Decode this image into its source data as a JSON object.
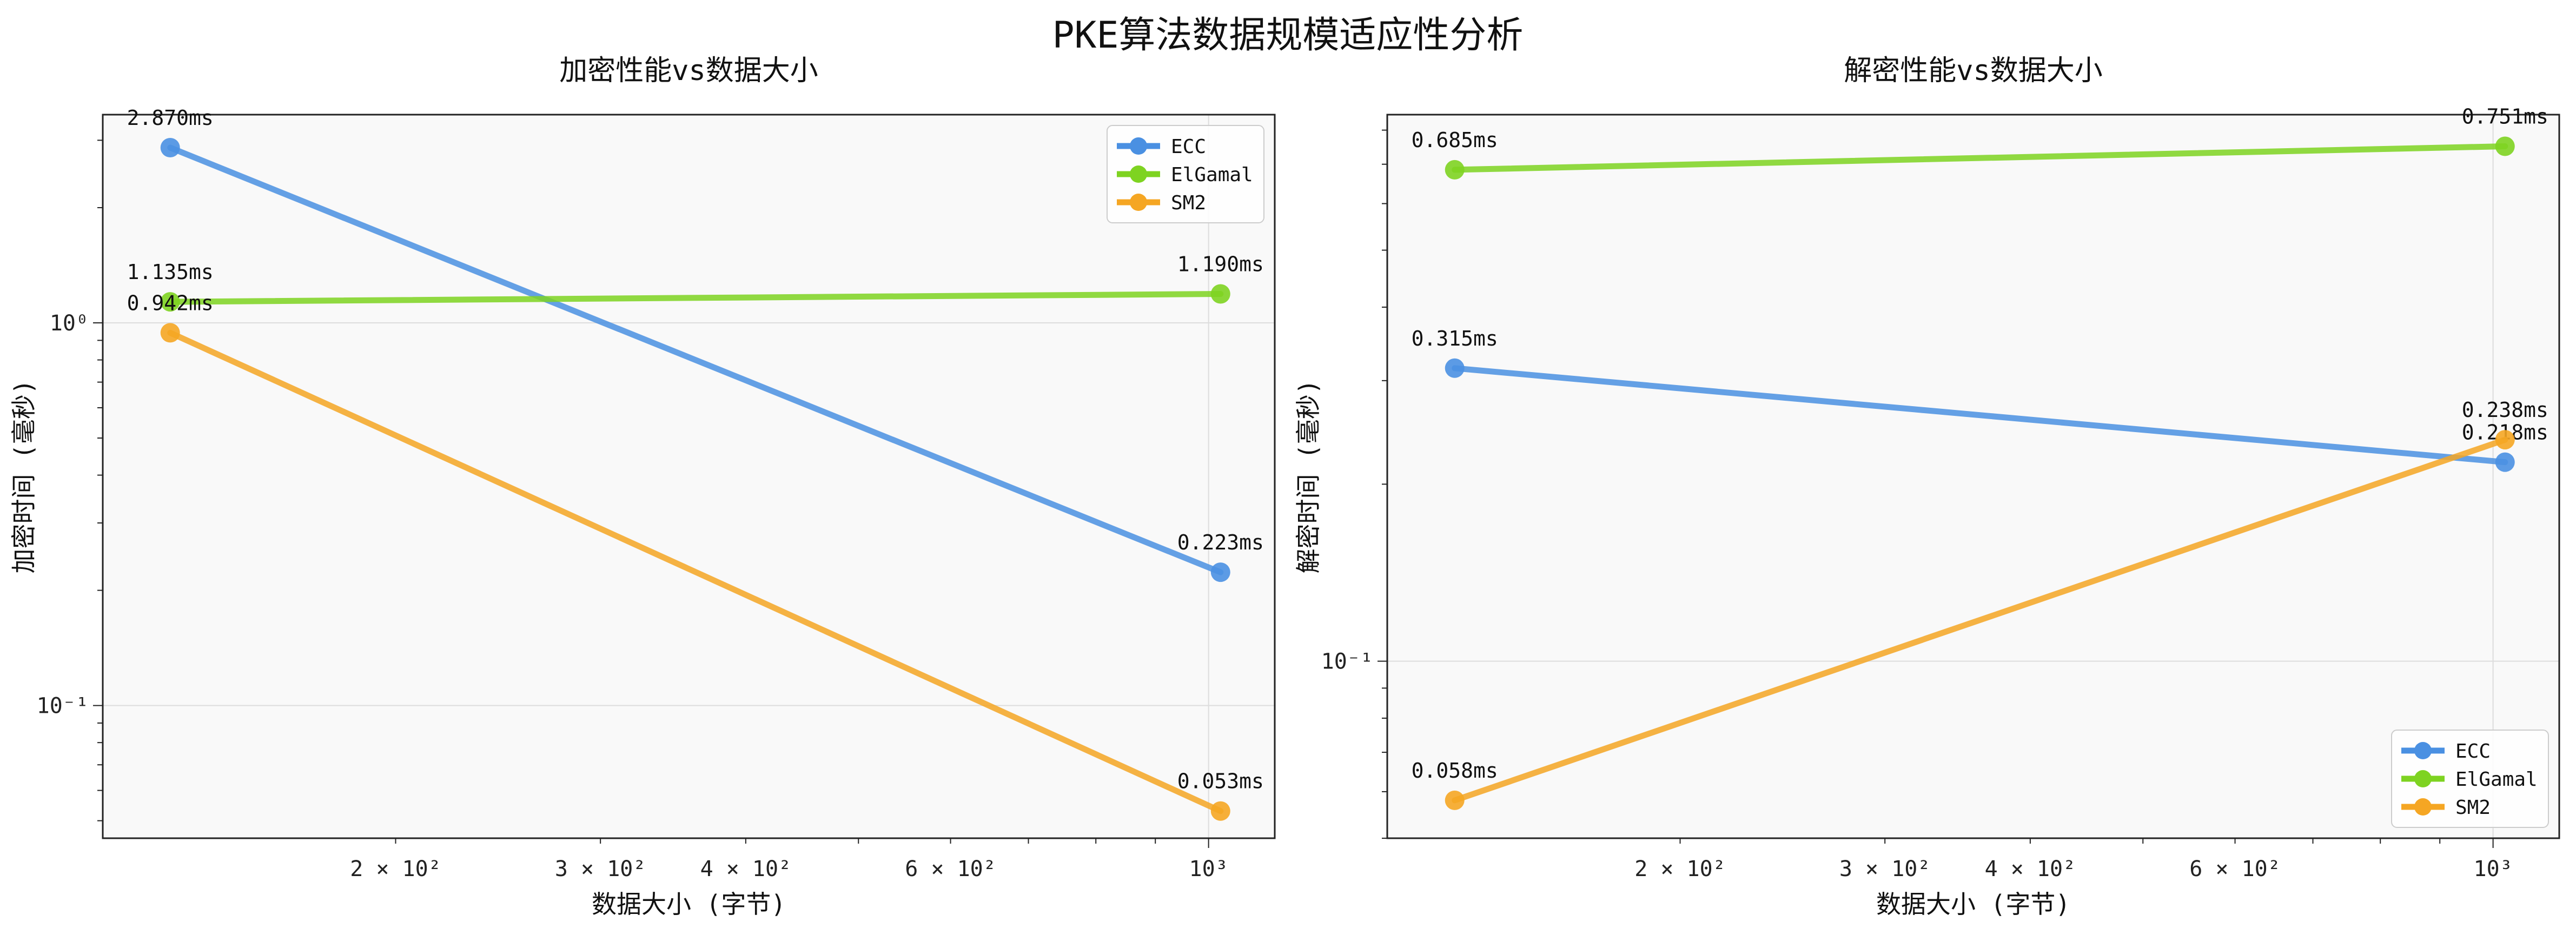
{
  "figure_title": "PKE算法数据规模适应性分析",
  "colors": {
    "ECC": "#4a90e2",
    "ElGamal": "#7ed321",
    "SM2": "#f5a623",
    "plot_bg": "#f9f9f9",
    "grid": "#dddddd"
  },
  "chart_data": [
    {
      "type": "line",
      "title": "加密性能vs数据大小",
      "xlabel": "数据大小 (字节)",
      "ylabel": "加密时间 (毫秒)",
      "xscale": "log",
      "yscale": "log",
      "xlim": [
        112,
        1140
      ],
      "ylim": [
        0.045,
        3.5
      ],
      "x_tick_labels": [
        {
          "value": 200,
          "label": "2 × 10²",
          "minor": true
        },
        {
          "value": 300,
          "label": "3 × 10²",
          "minor": true
        },
        {
          "value": 400,
          "label": "4 × 10²",
          "minor": true
        },
        {
          "value": 600,
          "label": "6 × 10²",
          "minor": true
        },
        {
          "value": 1000,
          "label": "10³",
          "minor": false
        }
      ],
      "y_tick_labels": [
        {
          "value": 0.1,
          "label": "10⁻¹"
        },
        {
          "value": 1,
          "label": "10⁰"
        }
      ],
      "grid": true,
      "legend_position": "top-right",
      "x": [
        128,
        1024
      ],
      "series": [
        {
          "name": "ECC",
          "values": [
            2.87,
            0.223
          ],
          "labels": [
            "2.870ms",
            "0.223ms"
          ]
        },
        {
          "name": "ElGamal",
          "values": [
            1.135,
            1.19
          ],
          "labels": [
            "1.135ms",
            "1.190ms"
          ]
        },
        {
          "name": "SM2",
          "values": [
            0.942,
            0.053
          ],
          "labels": [
            "0.942ms",
            "0.053ms"
          ]
        }
      ]
    },
    {
      "type": "line",
      "title": "解密性能vs数据大小",
      "xlabel": "数据大小 (字节)",
      "ylabel": "解密时间 (毫秒)",
      "xscale": "log",
      "yscale": "log",
      "xlim": [
        112,
        1140
      ],
      "ylim": [
        0.05,
        0.85
      ],
      "x_tick_labels": [
        {
          "value": 200,
          "label": "2 × 10²",
          "minor": true
        },
        {
          "value": 300,
          "label": "3 × 10²",
          "minor": true
        },
        {
          "value": 400,
          "label": "4 × 10²",
          "minor": true
        },
        {
          "value": 600,
          "label": "6 × 10²",
          "minor": true
        },
        {
          "value": 1000,
          "label": "10³",
          "minor": false
        }
      ],
      "y_tick_labels": [
        {
          "value": 0.1,
          "label": "10⁻¹"
        }
      ],
      "grid": true,
      "legend_position": "bottom-right",
      "x": [
        128,
        1024
      ],
      "series": [
        {
          "name": "ECC",
          "values": [
            0.315,
            0.218
          ],
          "labels": [
            "0.315ms",
            "0.218ms"
          ]
        },
        {
          "name": "ElGamal",
          "values": [
            0.685,
            0.751
          ],
          "labels": [
            "0.685ms",
            "0.751ms"
          ]
        },
        {
          "name": "SM2",
          "values": [
            0.058,
            0.238
          ],
          "labels": [
            "0.058ms",
            "0.238ms"
          ]
        }
      ]
    }
  ]
}
